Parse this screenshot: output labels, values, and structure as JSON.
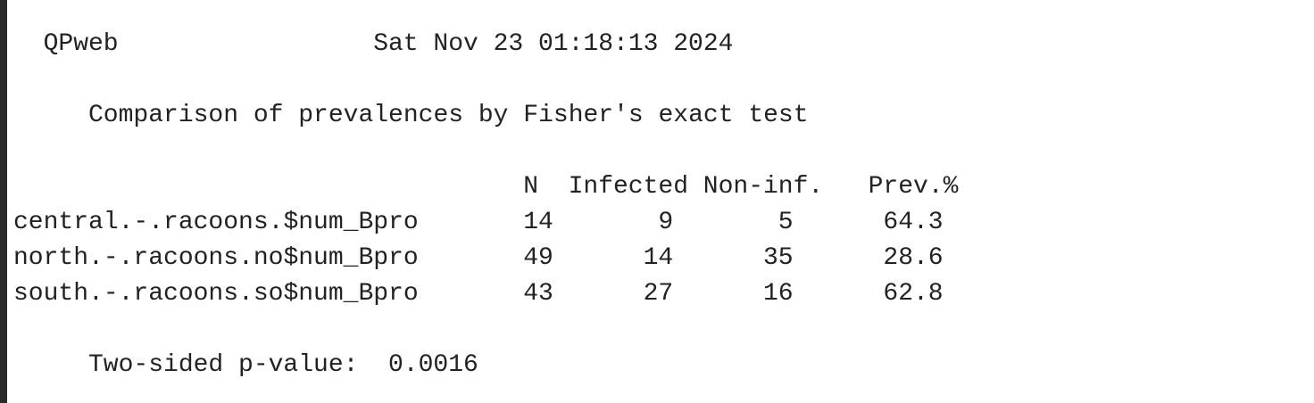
{
  "header": {
    "app": "QPweb",
    "date": "Sat Nov 23 01:18:13 2024"
  },
  "title": "Comparison of prevalences by Fisher's exact test",
  "table": {
    "columns": [
      "N",
      "Infected",
      "Non-inf.",
      "Prev.%"
    ],
    "rows": [
      [
        "central.-.racoons.$num_Bpro",
        14,
        9,
        5,
        64.3
      ],
      [
        "north.-.racoons.no$num_Bpro",
        49,
        14,
        35,
        28.6
      ],
      [
        "south.-.racoons.so$num_Bpro",
        43,
        27,
        16,
        62.8
      ]
    ]
  },
  "footer": {
    "label": "Two-sided p-value:",
    "value": 0.0016
  }
}
